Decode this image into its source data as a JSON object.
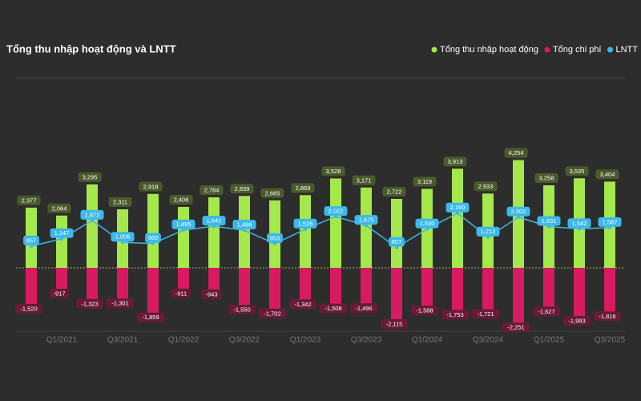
{
  "chart_data": {
    "type": "bar",
    "title": "Tổng thu nhập hoạt động và LNTT",
    "categories": [
      null,
      "Q1/2021",
      null,
      "Q3/2021",
      null,
      "Q1/2022",
      null,
      "Q3/2022",
      null,
      "Q1/2023",
      null,
      "Q3/2023",
      null,
      "Q1/2024",
      null,
      "Q3/2024",
      null,
      "Q1/2025",
      null,
      "Q3/2025"
    ],
    "series": [
      {
        "name": "Tổng thu nhập hoạt động",
        "color": "#a4e84c",
        "values": [
          2377,
          2064,
          3295,
          2311,
          2918,
          2406,
          2784,
          2839,
          2665,
          2869,
          3528,
          3171,
          2722,
          3119,
          3913,
          2933,
          4254,
          3258,
          3535,
          3404
        ],
        "value_labels": [
          "2,377",
          "2,064",
          "3,295",
          "2,311",
          "2,918",
          "2,406",
          "2,784",
          "2,839",
          "2,665",
          "2,869",
          "3,528",
          "3,171",
          "2,722",
          "3,119",
          "3,913",
          "2,933",
          "4,254",
          "3,258",
          "3,535",
          "3,404"
        ]
      },
      {
        "name": "Tổng chi phí",
        "color": "#d81b60",
        "values": [
          -1520,
          -917,
          -1323,
          -1301,
          -1859,
          -911,
          -943,
          -1550,
          -1702,
          -1342,
          -1508,
          -1496,
          -2115,
          -1588,
          -1753,
          -1721,
          -2251,
          -1627,
          -1993,
          -1816
        ],
        "value_labels": [
          "-1,520",
          "-917",
          "-1,323",
          "-1,301",
          "-1,859",
          "-911",
          "-943",
          "-1,550",
          "-1,702",
          "-1,342",
          "-1,508",
          "-1,496",
          "-2,115",
          "-1,588",
          "-1,753",
          "-1,721",
          "-2,251",
          "-1,627",
          "-1,993",
          "-1,816"
        ]
      },
      {
        "name": "LNTT",
        "color": "#3db8ea",
        "type": "line",
        "values": [
          857,
          1147,
          1872,
          1006,
          960,
          1495,
          1641,
          1486,
          953,
          1526,
          2022,
          1675,
          807,
          1530,
          2160,
          1212,
          2002,
          1631,
          1542,
          1587
        ],
        "value_labels": [
          "857",
          "1,147",
          "1,872",
          "1,006",
          "960",
          "1,495",
          "1,641",
          "1,486",
          "953",
          "1,526",
          "2,022",
          "1,675",
          "807",
          "1,530",
          "2,160",
          "1,212",
          "2,002",
          "1,631",
          "1,542",
          "1,587"
        ]
      }
    ],
    "ylim": [
      -2500,
      7500
    ],
    "legend": "top-right"
  }
}
